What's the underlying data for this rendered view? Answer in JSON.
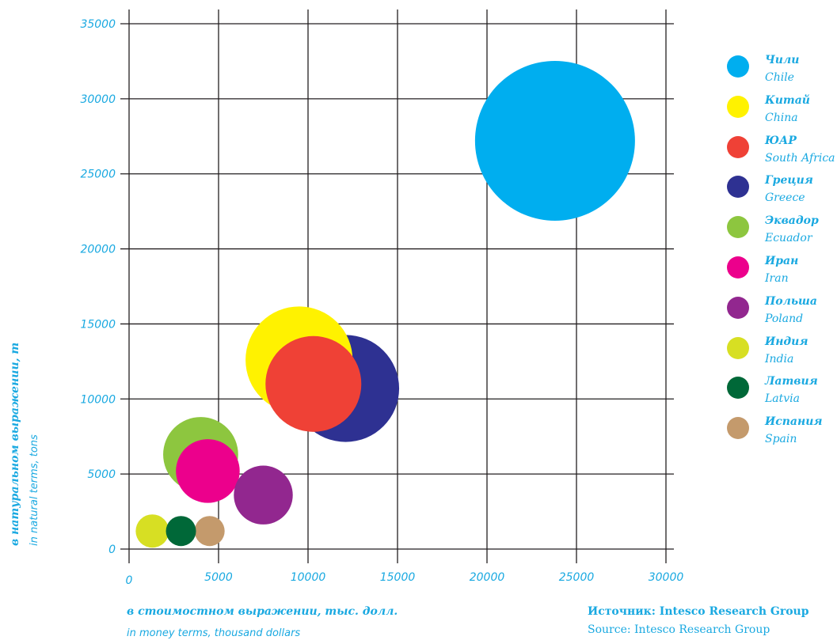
{
  "chart_data": {
    "type": "scatter",
    "subtype": "bubble",
    "xlabel_ru": "в стоимостном выражении, тыс. долл.",
    "xlabel_en": "in money terms, thousand dollars",
    "ylabel_ru": "в натуральном выражении, т",
    "ylabel_en": "in natural terms, tons",
    "xlim": [
      0,
      30000
    ],
    "ylim": [
      0,
      35000
    ],
    "x_ticks": [
      0,
      5000,
      10000,
      15000,
      20000,
      25000,
      30000
    ],
    "y_ticks": [
      0,
      5000,
      10000,
      15000,
      20000,
      25000,
      30000,
      35000
    ],
    "grid": true,
    "legend_position": "right",
    "series": [
      {
        "name_ru": "Чили",
        "name_en": "Chile",
        "color": "#00aeef",
        "x": 23800,
        "y": 27200,
        "size": 100
      },
      {
        "name_ru": "Греция",
        "name_en": "Greece",
        "color": "#2e3192",
        "x": 12100,
        "y": 10700,
        "size": 67
      },
      {
        "name_ru": "ЮАР",
        "name_en": "South Africa",
        "color": "#ef4136",
        "x": 10300,
        "y": 11000,
        "size": 60
      },
      {
        "name_ru": "Китай",
        "name_en": "China",
        "color": "#fff200",
        "x": 9500,
        "y": 12600,
        "size": 67
      },
      {
        "name_ru": "Польша",
        "name_en": "Poland",
        "color": "#92278f",
        "x": 7500,
        "y": 3600,
        "size": 37
      },
      {
        "name_ru": "Иран",
        "name_en": "Iran",
        "color": "#ec008c",
        "x": 4400,
        "y": 5200,
        "size": 40
      },
      {
        "name_ru": "Эквадор",
        "name_en": "Ecuador",
        "color": "#8dc63f",
        "x": 4000,
        "y": 6300,
        "size": 47
      },
      {
        "name_ru": "Испания",
        "name_en": "Spain",
        "color": "#c49a6c",
        "x": 4500,
        "y": 1200,
        "size": 19
      },
      {
        "name_ru": "Латвия",
        "name_en": "Latvia",
        "color": "#006838",
        "x": 2900,
        "y": 1200,
        "size": 19
      },
      {
        "name_ru": "Индия",
        "name_en": "India",
        "color": "#d7df23",
        "x": 1300,
        "y": 1200,
        "size": 21
      }
    ]
  },
  "legend": [
    {
      "ru": "Чили",
      "en": "Chile",
      "color": "#00aeef"
    },
    {
      "ru": "Китай",
      "en": "China",
      "color": "#fff200"
    },
    {
      "ru": "ЮАР",
      "en": "South Africa",
      "color": "#ef4136"
    },
    {
      "ru": "Греция",
      "en": "Greece",
      "color": "#2e3192"
    },
    {
      "ru": "Эквадор",
      "en": "Ecuador",
      "color": "#8dc63f"
    },
    {
      "ru": "Иран",
      "en": "Iran",
      "color": "#ec008c"
    },
    {
      "ru": "Польша",
      "en": "Poland",
      "color": "#92278f"
    },
    {
      "ru": "Индия",
      "en": "India",
      "color": "#d7df23"
    },
    {
      "ru": "Латвия",
      "en": "Latvia",
      "color": "#006838"
    },
    {
      "ru": "Испания",
      "en": "Spain",
      "color": "#c49a6c"
    }
  ],
  "source": {
    "ru": "Источник: Intesco Research Group",
    "en": "Source: Intesco Research Group"
  }
}
